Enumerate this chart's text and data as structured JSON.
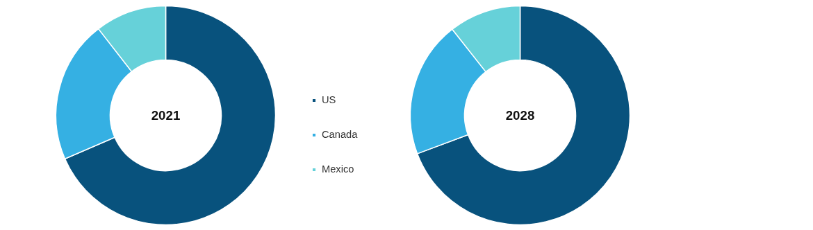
{
  "chart_data": [
    {
      "type": "donut",
      "title": "2021",
      "categories": [
        "US",
        "Canada",
        "Mexico"
      ],
      "values": [
        68.5,
        21,
        10.5
      ],
      "colors": [
        "#08527d",
        "#35b0e3",
        "#66d1d9"
      ],
      "legend": "right"
    },
    {
      "type": "donut",
      "title": "2028",
      "categories": [
        null,
        null,
        null
      ],
      "values": [
        69.3,
        20.1,
        10.6
      ],
      "colors": [
        "#08527d",
        "#35b0e3",
        "#66d1d9"
      ]
    }
  ]
}
